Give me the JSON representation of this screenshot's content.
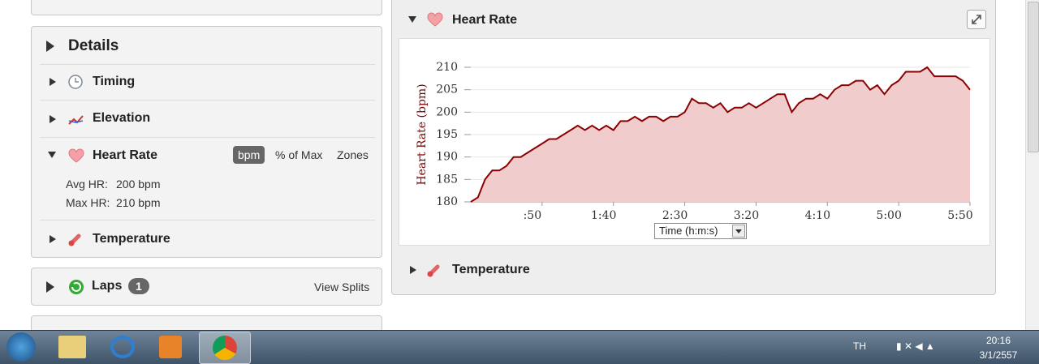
{
  "left_panel": {
    "details": {
      "title": "Details",
      "items": [
        "Timing",
        "Elevation",
        "Heart Rate",
        "Temperature"
      ],
      "heart_rate": {
        "units": [
          "bpm",
          "% of Max",
          "Zones"
        ],
        "stats": [
          {
            "label": "Avg HR:",
            "value": "200 bpm"
          },
          {
            "label": "Max HR:",
            "value": "210 bpm"
          }
        ]
      }
    },
    "laps": {
      "title": "Laps",
      "count": 1,
      "action": "View Splits"
    }
  },
  "right_panel": {
    "title": "Heart Rate",
    "footer": "Temperature"
  },
  "chart_data": {
    "type": "line",
    "ylabel": "Heart Rate (bpm)",
    "xlabel": "Time (h:m:s)",
    "x": [
      0,
      5,
      10,
      15,
      20,
      25,
      30,
      35,
      40,
      45,
      50,
      55,
      60,
      65,
      70,
      75,
      80,
      85,
      90,
      95,
      100,
      105,
      110,
      115,
      120,
      125,
      130,
      135,
      140,
      145,
      150,
      155,
      160,
      165,
      170,
      175,
      180,
      185,
      190,
      195,
      200,
      205,
      210,
      215,
      220,
      225,
      230,
      235,
      240,
      245,
      250,
      255,
      260,
      265,
      270,
      275,
      280,
      285,
      290,
      295,
      300,
      305,
      310,
      315,
      320,
      325,
      330,
      335,
      340,
      345,
      350
    ],
    "values": [
      180,
      181,
      185,
      187,
      187,
      188,
      190,
      190,
      191,
      192,
      193,
      194,
      194,
      195,
      196,
      197,
      196,
      197,
      196,
      197,
      196,
      198,
      198,
      199,
      198,
      199,
      199,
      198,
      199,
      199,
      200,
      203,
      202,
      202,
      201,
      202,
      200,
      201,
      201,
      202,
      201,
      202,
      203,
      204,
      204,
      200,
      202,
      203,
      203,
      204,
      203,
      205,
      206,
      206,
      207,
      207,
      205,
      206,
      204,
      206,
      207,
      209,
      209,
      209,
      210,
      208,
      208,
      208,
      208,
      207,
      205
    ],
    "color": "#8b0000",
    "fill": "#f0cccc",
    "xlim": [
      0,
      350
    ],
    "xticks": [
      {
        "value": 50,
        "label": ":50"
      },
      {
        "value": 100,
        "label": "1:40"
      },
      {
        "value": 150,
        "label": "2:30"
      },
      {
        "value": 200,
        "label": "3:20"
      },
      {
        "value": 250,
        "label": "4:10"
      },
      {
        "value": 300,
        "label": "5:00"
      },
      {
        "value": 350,
        "label": "5:50"
      }
    ],
    "ylim": [
      180,
      210
    ],
    "yticks": [
      180,
      185,
      190,
      195,
      200,
      205,
      210
    ],
    "grid": true
  },
  "taskbar": {
    "language": "TH",
    "time": "20:16",
    "date": "3/1/2557"
  }
}
